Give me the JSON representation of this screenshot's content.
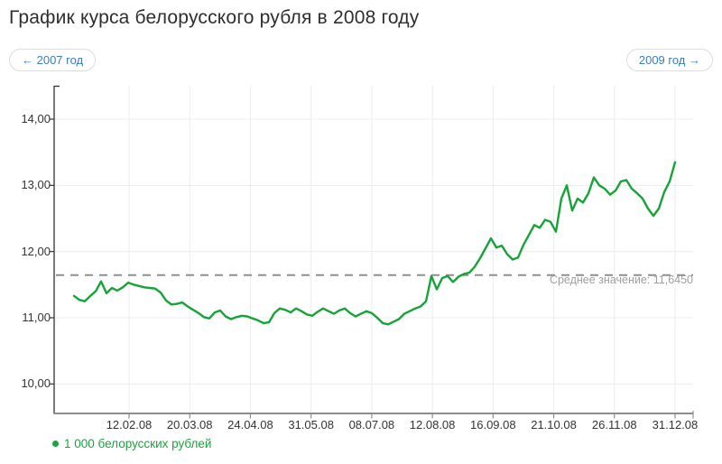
{
  "page": {
    "title": "График курса белорусского рубля в 2008 году"
  },
  "nav": {
    "prev_label": "← 2007 год",
    "next_label": "2009 год →"
  },
  "colors": {
    "series_green": "#16a338",
    "legend_green": "#1ba43e",
    "link_blue": "#3a7cbe",
    "grid": "#ececec",
    "y_axis": "#333333",
    "x_axis": "#8c8c8c",
    "dashed_mean": "#8f8f8f",
    "mean_text": "#9e9e9e",
    "axis_text": "#333333"
  },
  "chart_data": {
    "type": "line",
    "title": "График курса белорусского рубля в 2008 году",
    "xlabel": "",
    "ylabel": "",
    "grid": true,
    "legend_position": "bottom-left",
    "ylim": [
      9.55,
      14.5
    ],
    "y_ticks": [
      "14,00",
      "13,00",
      "12,00",
      "11,00",
      "10,00"
    ],
    "y_values": [
      14,
      13,
      12,
      11,
      10
    ],
    "x_ticks": [
      "12.02.08",
      "20.03.08",
      "24.04.08",
      "31.05.08",
      "08.07.08",
      "12.08.08",
      "16.09.08",
      "21.10.08",
      "26.11.08",
      "31.12.08"
    ],
    "average": {
      "value": 11.645,
      "label": "Среднее значение: 11,6450"
    },
    "series": [
      {
        "name": "1 000 белорусских рублей",
        "color": "#16a338",
        "start_date": "09.01.08",
        "end_date": "31.12.08",
        "sampling": "approx. every 3 days, evenly spaced",
        "values": [
          11.33,
          11.27,
          11.25,
          11.33,
          11.4,
          11.55,
          11.37,
          11.45,
          11.41,
          11.46,
          11.53,
          11.5,
          11.48,
          11.46,
          11.45,
          11.44,
          11.38,
          11.26,
          11.2,
          11.21,
          11.23,
          11.17,
          11.12,
          11.07,
          11.01,
          10.99,
          11.08,
          11.11,
          11.02,
          10.98,
          11.01,
          11.03,
          11.02,
          10.99,
          10.96,
          10.92,
          10.93,
          11.07,
          11.14,
          11.12,
          11.08,
          11.14,
          11.1,
          11.05,
          11.03,
          11.09,
          11.14,
          11.1,
          11.06,
          11.11,
          11.14,
          11.07,
          11.02,
          11.06,
          11.1,
          11.07,
          11.0,
          10.92,
          10.9,
          10.94,
          10.98,
          11.06,
          11.1,
          11.14,
          11.17,
          11.25,
          11.63,
          11.43,
          11.6,
          11.63,
          11.54,
          11.62,
          11.66,
          11.68,
          11.77,
          11.9,
          12.05,
          12.2,
          12.06,
          12.09,
          11.96,
          11.88,
          11.91,
          12.1,
          12.25,
          12.4,
          12.36,
          12.48,
          12.45,
          12.3,
          12.8,
          13.0,
          12.62,
          12.8,
          12.74,
          12.88,
          13.12,
          13.0,
          12.95,
          12.86,
          12.92,
          13.06,
          13.08,
          12.95,
          12.88,
          12.8,
          12.65,
          12.54,
          12.65,
          12.9,
          13.06,
          13.35
        ]
      }
    ]
  }
}
